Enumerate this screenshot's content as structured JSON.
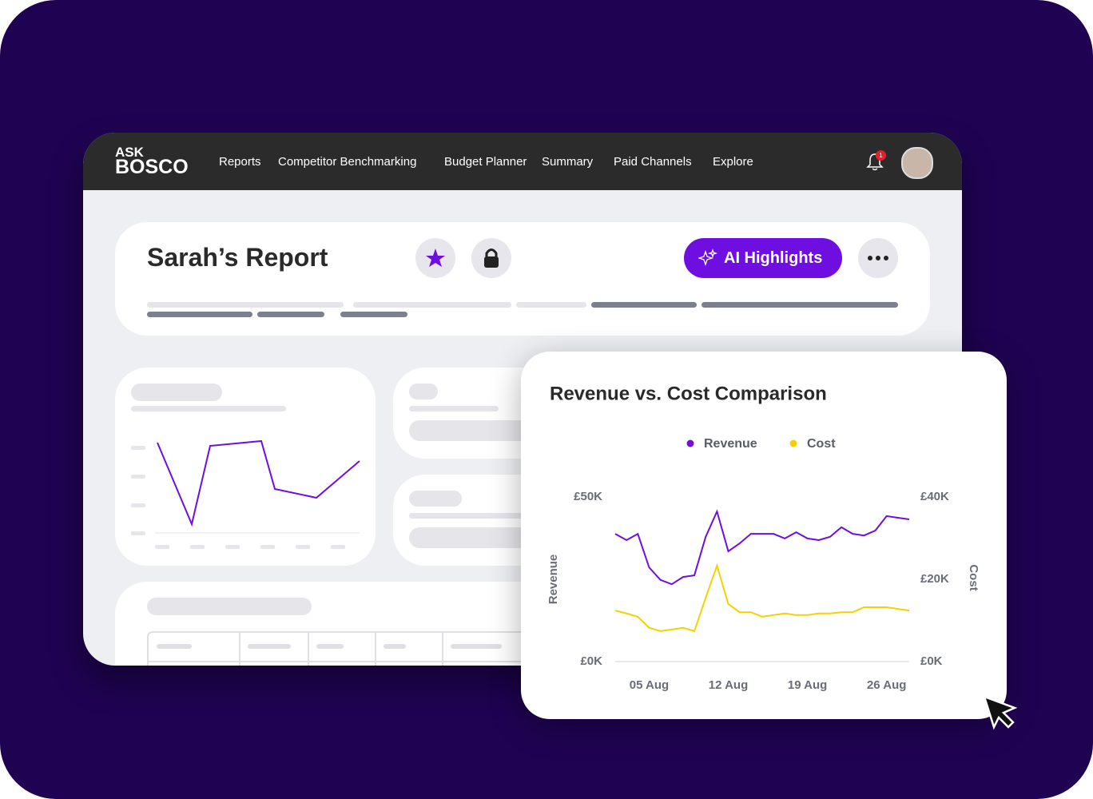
{
  "nav": {
    "logo_top": "ASK",
    "logo_bottom": "BOSCO",
    "menu": [
      "Reports",
      "Competitor Benchmarking",
      "Budget Planner",
      "Summary",
      "Paid Channels",
      "Explore"
    ],
    "notifications": 1
  },
  "report": {
    "title": "Sarah’s Report",
    "button": "AI Highlights"
  },
  "chart_data": {
    "type": "line",
    "title": "Revenue vs. Cost Comparison",
    "categories": [
      null,
      null,
      null,
      "05 Aug",
      null,
      null,
      null,
      null,
      null,
      null,
      "12 Aug",
      null,
      null,
      null,
      null,
      null,
      null,
      "19 Aug",
      null,
      null,
      null,
      null,
      null,
      null,
      "26 Aug",
      null,
      null
    ],
    "series": [
      {
        "name": "Revenue",
        "color": "#6f0ee0",
        "values": [
          38800,
          36900,
          38800,
          28600,
          24800,
          23500,
          25700,
          26200,
          37900,
          45600,
          33500,
          35900,
          38800,
          38800,
          38800,
          37400,
          39300,
          37400,
          36900,
          37900,
          40800,
          38800,
          38300,
          39800,
          44200,
          43700,
          43200
        ]
      },
      {
        "name": "Cost",
        "color": "#f2d200",
        "axis": "y2",
        "values": [
          12400,
          11700,
          10900,
          8200,
          7400,
          7800,
          8200,
          7400,
          15500,
          23300,
          14000,
          12000,
          12000,
          10900,
          11300,
          11700,
          11300,
          11300,
          11700,
          11700,
          12000,
          12000,
          13200,
          13200,
          13200,
          12800,
          12400
        ]
      }
    ],
    "y_label": "Revenue",
    "y2_label": "Cost",
    "ylim": [
      0,
      50000
    ],
    "yticks": [
      {
        "value": 0,
        "label": "£0K"
      },
      {
        "value": 50000,
        "label": "£50K"
      }
    ],
    "y2lim": [
      0,
      40000
    ],
    "y2ticks": [
      {
        "value": 0,
        "label": "£0K"
      },
      {
        "value": 20000,
        "label": "£20K"
      },
      {
        "value": 40000,
        "label": "£40K"
      }
    ],
    "grid": false
  }
}
